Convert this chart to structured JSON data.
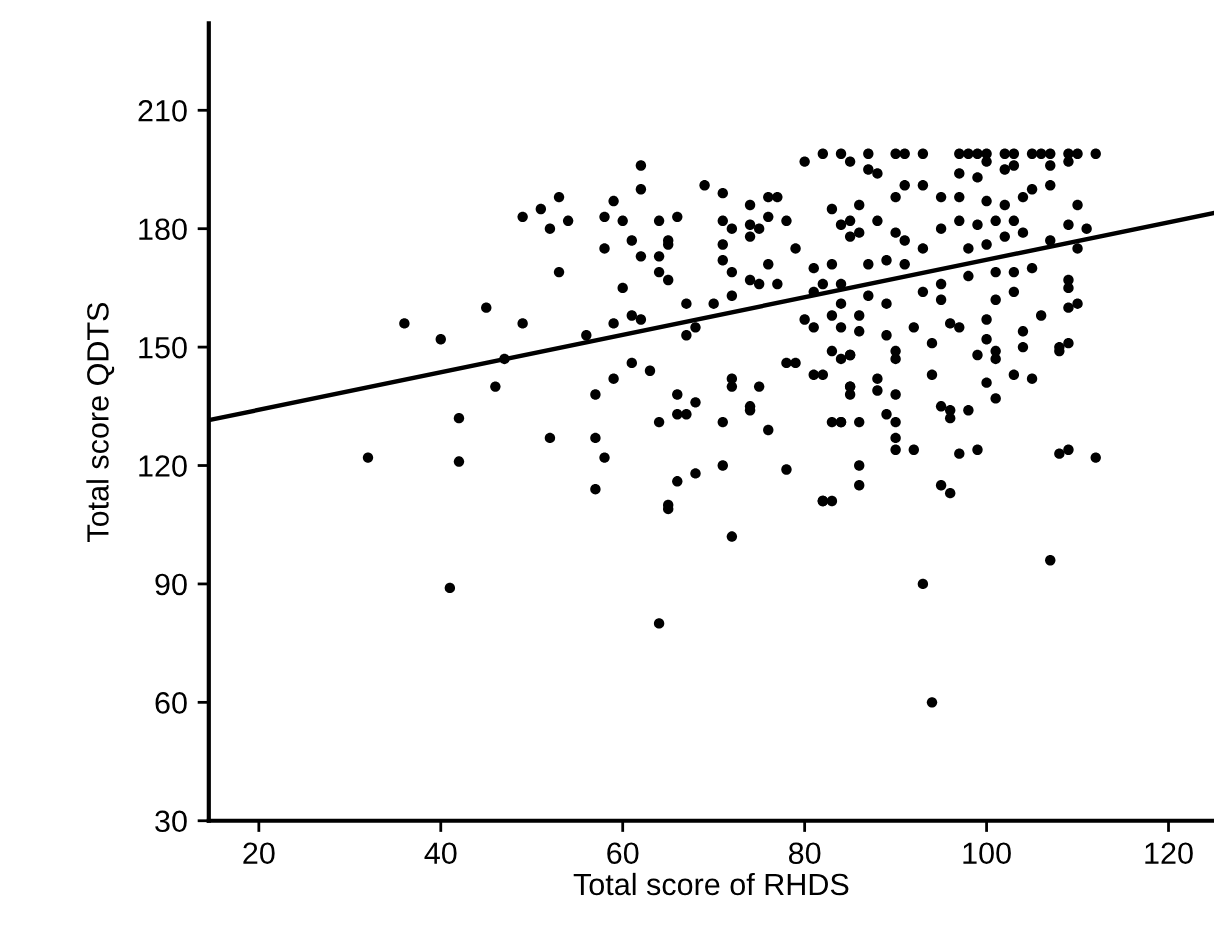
{
  "chart_data": {
    "type": "scatter",
    "xlabel": "Total score of RHDS",
    "ylabel": "Total score QDTS",
    "xlim": [
      14.5,
      125
    ],
    "ylim": [
      30,
      232
    ],
    "xticks": [
      20,
      40,
      60,
      80,
      100,
      120
    ],
    "yticks": [
      30,
      60,
      90,
      120,
      150,
      180,
      210
    ],
    "grid": false,
    "legend": false,
    "series": [
      {
        "color": "#000000",
        "marker": "circle",
        "x": [
          49,
          51,
          36,
          40,
          45,
          49,
          47,
          46,
          42,
          32,
          42,
          41,
          65,
          64,
          72,
          82,
          83,
          93,
          107,
          94,
          53,
          52,
          54,
          62,
          62,
          59,
          58,
          60,
          58,
          61,
          64,
          66,
          65,
          65,
          62,
          64,
          64,
          65,
          53,
          69,
          71,
          71,
          72,
          71,
          71,
          72,
          74,
          76,
          77,
          76,
          78,
          74,
          75,
          74,
          76,
          79,
          74,
          75,
          77,
          80,
          82,
          85,
          83,
          85,
          85,
          81,
          82,
          81,
          83,
          84,
          83,
          60,
          56,
          59,
          61,
          62,
          67,
          70,
          72,
          68,
          67,
          80,
          81,
          83,
          84,
          85,
          59,
          61,
          63,
          57,
          66,
          66,
          67,
          68,
          72,
          72,
          75,
          74,
          74,
          78,
          79,
          81,
          82,
          85,
          64,
          71,
          76,
          83,
          84,
          57,
          52,
          58,
          57,
          66,
          68,
          71,
          65,
          78,
          82,
          84,
          87,
          90,
          91,
          93,
          97,
          98,
          99,
          100,
          102,
          103,
          105,
          106,
          107,
          109,
          110,
          112,
          87,
          88,
          91,
          93,
          97,
          99,
          100,
          102,
          103,
          107,
          109,
          107,
          105,
          104,
          102,
          100,
          97,
          95,
          90,
          86,
          110,
          84,
          86,
          88,
          90,
          91,
          93,
          95,
          97,
          99,
          101,
          103,
          104,
          102,
          100,
          98,
          109,
          111,
          107,
          110,
          89,
          91,
          87,
          98,
          101,
          103,
          105,
          109,
          109,
          84,
          87,
          89,
          93,
          95,
          95,
          101,
          103,
          110,
          109,
          86,
          92,
          96,
          97,
          100,
          106,
          104,
          84,
          86,
          89,
          94,
          100,
          104,
          108,
          109,
          108,
          90,
          85,
          90,
          99,
          101,
          101,
          94,
          103,
          105,
          100,
          85,
          88,
          88,
          85,
          90,
          101,
          95,
          96,
          98,
          89,
          84,
          86,
          90,
          96,
          90,
          90,
          92,
          97,
          99,
          108,
          109,
          112,
          86,
          86,
          95,
          96
        ],
        "values": [
          183,
          185,
          156,
          152,
          160,
          156,
          147,
          140,
          132,
          122,
          121,
          89,
          109,
          80,
          102,
          111,
          111,
          90,
          96,
          60,
          188,
          180,
          182,
          196,
          190,
          187,
          183,
          182,
          175,
          177,
          182,
          183,
          177,
          176,
          173,
          173,
          169,
          167,
          169,
          191,
          189,
          182,
          180,
          176,
          172,
          169,
          186,
          188,
          188,
          183,
          182,
          181,
          180,
          178,
          171,
          175,
          167,
          166,
          166,
          197,
          199,
          197,
          185,
          182,
          178,
          170,
          166,
          164,
          171,
          161,
          158,
          165,
          153,
          156,
          158,
          157,
          161,
          161,
          163,
          155,
          153,
          157,
          155,
          149,
          147,
          148,
          142,
          146,
          144,
          138,
          138,
          133,
          133,
          136,
          142,
          140,
          140,
          135,
          134,
          146,
          146,
          143,
          143,
          140,
          131,
          131,
          129,
          131,
          131,
          127,
          127,
          122,
          114,
          116,
          118,
          120,
          110,
          119,
          111,
          199,
          199,
          199,
          199,
          199,
          199,
          199,
          199,
          199,
          199,
          199,
          199,
          199,
          199,
          199,
          199,
          199,
          195,
          194,
          191,
          191,
          194,
          193,
          197,
          195,
          196,
          196,
          197,
          191,
          190,
          188,
          186,
          187,
          188,
          188,
          188,
          186,
          186,
          181,
          179,
          182,
          179,
          177,
          175,
          180,
          182,
          181,
          182,
          182,
          179,
          178,
          176,
          175,
          181,
          180,
          177,
          175,
          172,
          171,
          171,
          168,
          169,
          169,
          170,
          167,
          165,
          166,
          163,
          161,
          164,
          166,
          162,
          162,
          164,
          161,
          160,
          158,
          155,
          156,
          155,
          157,
          158,
          154,
          155,
          154,
          153,
          151,
          152,
          150,
          150,
          151,
          149,
          149,
          148,
          147,
          148,
          149,
          147,
          143,
          143,
          142,
          141,
          140,
          142,
          139,
          138,
          138,
          137,
          135,
          134,
          134,
          133,
          131,
          131,
          131,
          132,
          127,
          124,
          124,
          123,
          124,
          123,
          124,
          122,
          120,
          115,
          115,
          113
        ]
      },
      {
        "type": "line",
        "color": "#000000",
        "x": [
          14.5,
          125
        ],
        "values": [
          131.5,
          184
        ]
      }
    ]
  }
}
